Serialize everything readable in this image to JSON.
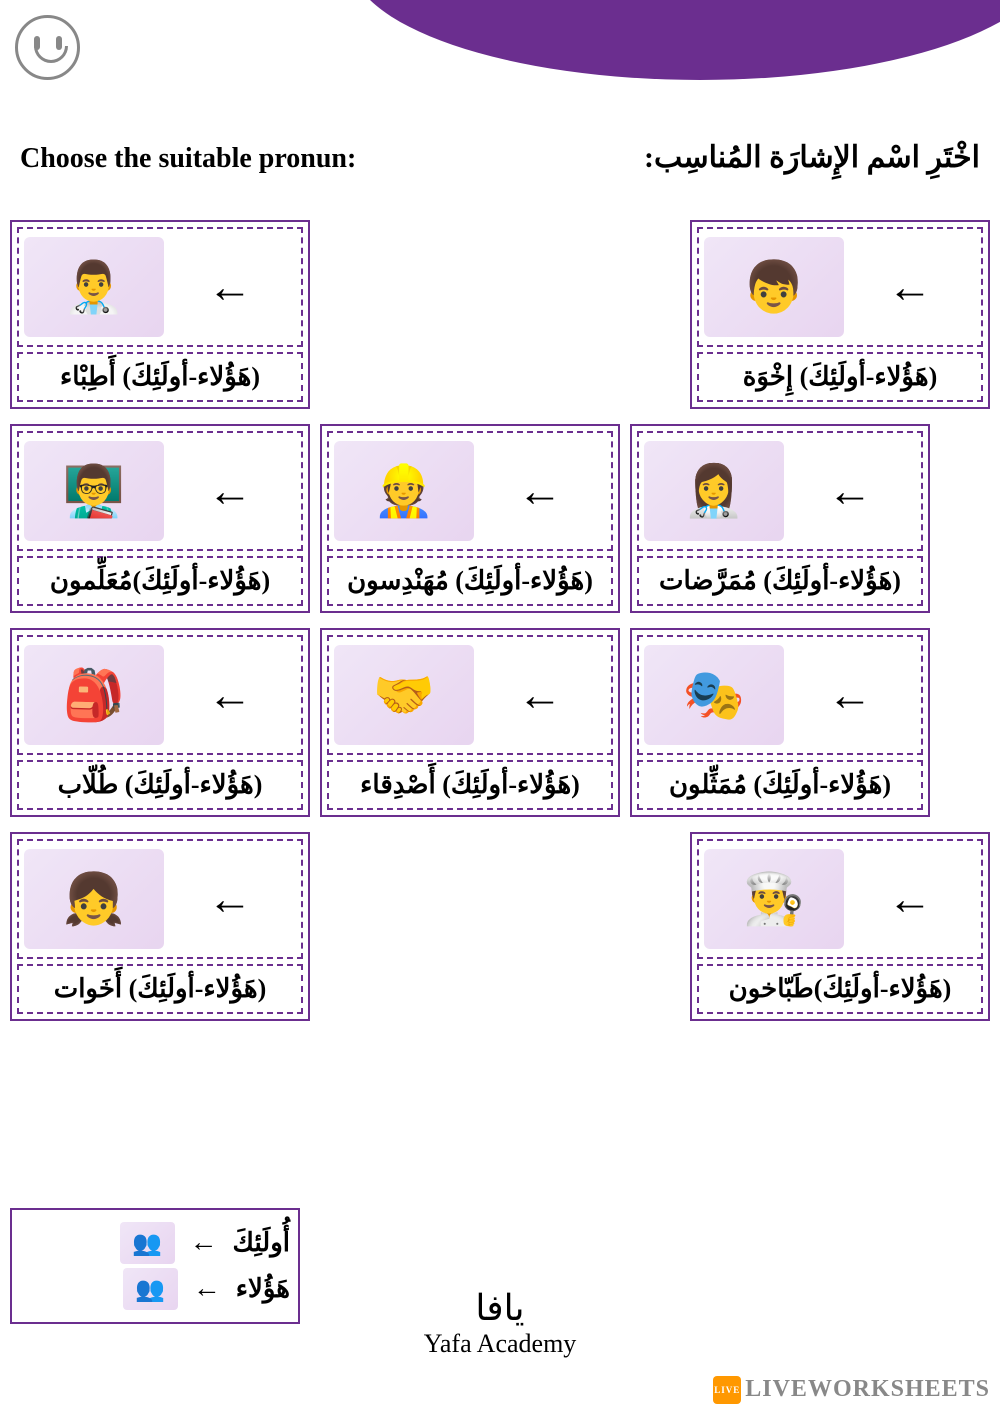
{
  "colors": {
    "purple": "#6b2e8f",
    "background": "#ffffff",
    "text": "#000000",
    "watermark": "#888888"
  },
  "instructions": {
    "english": "Choose the suitable pronun:",
    "arabic": "اخْتَرِ اسْم الإِشارَة المُناسِب:"
  },
  "cards": [
    {
      "row": 0,
      "col": 0,
      "icon": "👨‍⚕️",
      "text": "(هَؤُلاء-أولَئِكَ) أَطِبْاء"
    },
    {
      "row": 0,
      "col": 2,
      "icon": "👦",
      "text": "(هَؤُلاء-أولَئِكَ) إِخْوَة"
    },
    {
      "row": 1,
      "col": 0,
      "icon": "👨‍🏫",
      "text": "(هَؤُلاء-أولَئِكَ)مُعَلِّمون"
    },
    {
      "row": 1,
      "col": 1,
      "icon": "👷",
      "text": "(هَؤُلاء-أولَئِكَ) مُهَنْدِسون"
    },
    {
      "row": 1,
      "col": 2,
      "icon": "👩‍⚕️",
      "text": "(هَؤُلاء-أولَئِكَ) مُمَرَّضات"
    },
    {
      "row": 2,
      "col": 0,
      "icon": "🎒",
      "text": "(هَؤُلاء-أولَئِكَ) طُلّاب"
    },
    {
      "row": 2,
      "col": 1,
      "icon": "🤝",
      "text": "(هَؤُلاء-أولَئِكَ) أَصْدِقاء"
    },
    {
      "row": 2,
      "col": 2,
      "icon": "🎭",
      "text": "(هَؤُلاء-أولَئِكَ) مُمَثِّلون"
    },
    {
      "row": 3,
      "col": 0,
      "icon": "👧",
      "text": "(هَؤُلاء-أولَئِكَ) أَخَوات"
    },
    {
      "row": 3,
      "col": 2,
      "icon": "👨‍🍳",
      "text": "(هَؤُلاء-أولَئِكَ)طَبّاخون"
    }
  ],
  "legend": {
    "far": {
      "icon": "👥",
      "text": "أُولَئِكَ"
    },
    "near": {
      "icon": "👥",
      "text": "هَؤُلاء"
    }
  },
  "footer": {
    "arabic": "يافا",
    "english": "Yafa Academy"
  },
  "watermark": "LIVEWORKSHEETS"
}
